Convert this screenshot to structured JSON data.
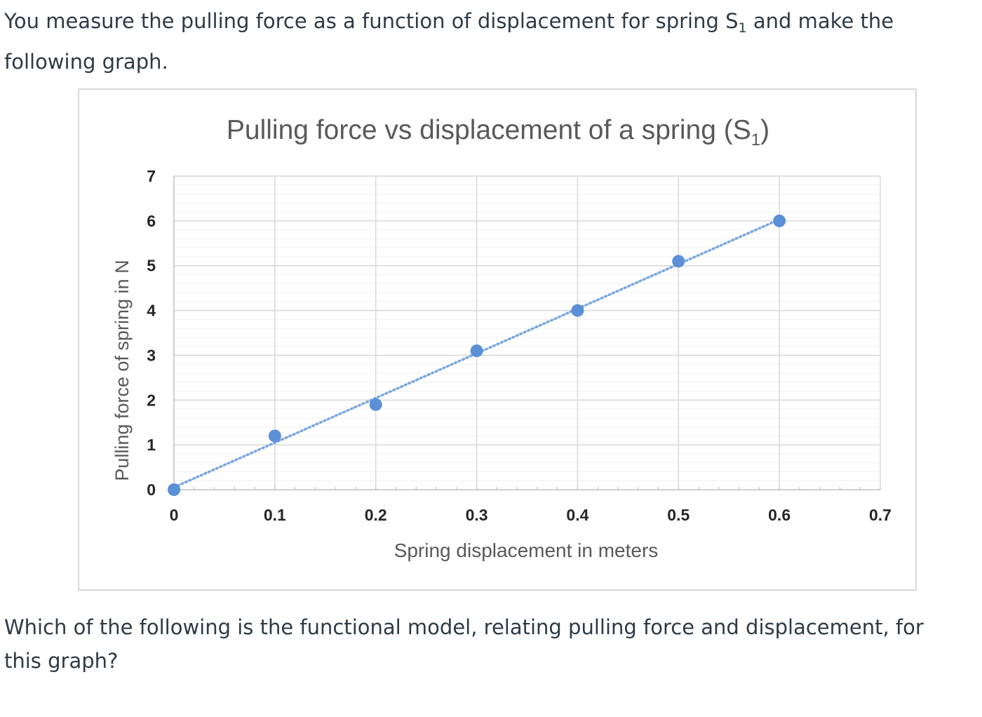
{
  "intro": {
    "text_before": "You measure the pulling force as a function of displacement for spring S",
    "subscript": "1",
    "text_after": " and make the following graph."
  },
  "question": {
    "text": "Which of the following is the functional model, relating pulling force and displacement, for this graph?"
  },
  "chart_data": {
    "type": "scatter",
    "title": "Pulling force vs displacement of a spring (S",
    "title_subscript": "1",
    "title_suffix": ")",
    "xlabel": "Spring displacement in meters",
    "ylabel": "Pulling force of spring in N",
    "xlim": [
      0,
      0.7
    ],
    "ylim": [
      0,
      7
    ],
    "xticks": [
      "0",
      "0.1",
      "0.2",
      "0.3",
      "0.4",
      "0.5",
      "0.6",
      "0.7"
    ],
    "yticks": [
      "0",
      "1",
      "2",
      "3",
      "4",
      "5",
      "6",
      "7"
    ],
    "grid": true,
    "trendline": "linear, dotted",
    "marker_color": "#5b8fd6",
    "trendline_color": "#7aa7e0",
    "points": [
      {
        "x": 0,
        "y": 0
      },
      {
        "x": 0.1,
        "y": 1.2
      },
      {
        "x": 0.2,
        "y": 1.9
      },
      {
        "x": 0.3,
        "y": 3.1
      },
      {
        "x": 0.4,
        "y": 4.0
      },
      {
        "x": 0.5,
        "y": 5.1
      },
      {
        "x": 0.6,
        "y": 6.0
      }
    ]
  }
}
